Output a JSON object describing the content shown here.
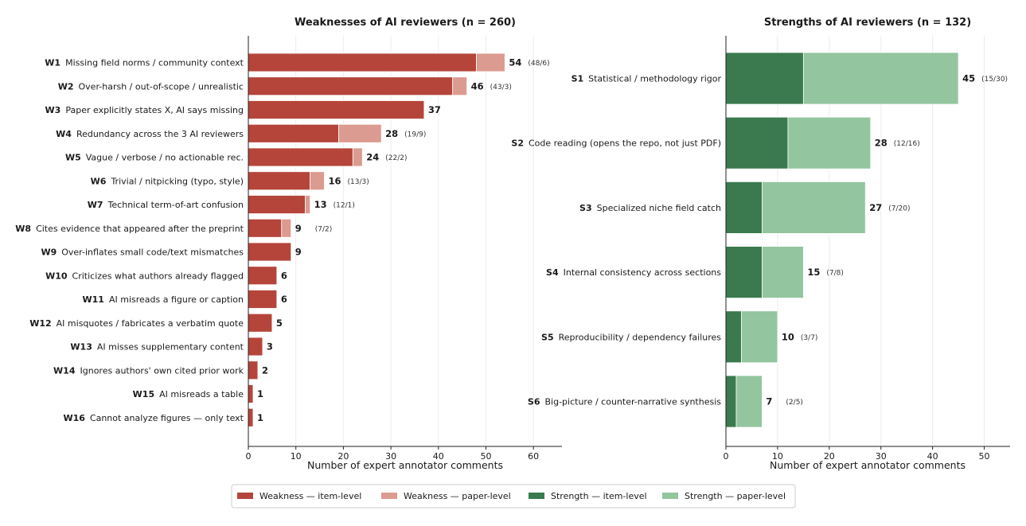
{
  "colors": {
    "weakness_item": "#b5453a",
    "weakness_paper": "#dc9b90",
    "strength_item": "#3a7a4e",
    "strength_paper": "#93c59f"
  },
  "legend": [
    {
      "label": "Weakness — item-level",
      "color_key": "weakness_item"
    },
    {
      "label": "Weakness — paper-level",
      "color_key": "weakness_paper"
    },
    {
      "label": "Strength — item-level",
      "color_key": "strength_item"
    },
    {
      "label": "Strength — paper-level",
      "color_key": "strength_paper"
    }
  ],
  "chart_data": [
    {
      "type": "bar",
      "orientation": "horizontal",
      "stacked": true,
      "title": "Weaknesses of AI reviewers (n = 260)",
      "xlabel": "Number of expert annotator comments",
      "xlim": [
        0,
        66
      ],
      "xticks": [
        0,
        10,
        20,
        30,
        40,
        50,
        60
      ],
      "grid": "vertical",
      "categories": [
        {
          "code": "W1",
          "text": "Missing field norms / community context"
        },
        {
          "code": "W2",
          "text": "Over-harsh / out-of-scope / unrealistic"
        },
        {
          "code": "W3",
          "text": "Paper explicitly states X, AI says missing"
        },
        {
          "code": "W4",
          "text": "Redundancy across the 3 AI reviewers"
        },
        {
          "code": "W5",
          "text": "Vague / verbose / no actionable rec."
        },
        {
          "code": "W6",
          "text": "Trivial / nitpicking (typo, style)"
        },
        {
          "code": "W7",
          "text": "Technical term-of-art confusion"
        },
        {
          "code": "W8",
          "text": "Cites evidence that appeared after the preprint"
        },
        {
          "code": "W9",
          "text": "Over-inflates small code/text mismatches"
        },
        {
          "code": "W10",
          "text": "Criticizes what authors already flagged"
        },
        {
          "code": "W11",
          "text": "AI misreads a figure or caption"
        },
        {
          "code": "W12",
          "text": "AI misquotes / fabricates a verbatim quote"
        },
        {
          "code": "W13",
          "text": "AI misses supplementary content"
        },
        {
          "code": "W14",
          "text": "Ignores authors' own cited prior work"
        },
        {
          "code": "W15",
          "text": "AI misreads a table"
        },
        {
          "code": "W16",
          "text": "Cannot analyze figures — only text"
        }
      ],
      "series": [
        {
          "name": "Weakness — item-level",
          "color_key": "weakness_item",
          "values": [
            48,
            43,
            37,
            19,
            22,
            13,
            12,
            7,
            9,
            6,
            6,
            5,
            3,
            2,
            1,
            1
          ]
        },
        {
          "name": "Weakness — paper-level",
          "color_key": "weakness_paper",
          "values": [
            6,
            3,
            0,
            9,
            2,
            3,
            1,
            2,
            0,
            0,
            0,
            0,
            0,
            0,
            0,
            0
          ]
        }
      ],
      "totals": [
        54,
        46,
        37,
        28,
        24,
        16,
        13,
        9,
        9,
        6,
        6,
        5,
        3,
        2,
        1,
        1
      ],
      "split_labels": [
        "(48/6)",
        "(43/3)",
        "",
        "(19/9)",
        "(22/2)",
        "(13/3)",
        "(12/1)",
        "(7/2)",
        "",
        "",
        "",
        "",
        "",
        "",
        "",
        ""
      ]
    },
    {
      "type": "bar",
      "orientation": "horizontal",
      "stacked": true,
      "title": "Strengths of AI reviewers (n = 132)",
      "xlabel": "Number of expert annotator comments",
      "xlim": [
        0,
        55
      ],
      "xticks": [
        0,
        10,
        20,
        30,
        40,
        50
      ],
      "grid": "vertical",
      "categories": [
        {
          "code": "S1",
          "text": "Statistical / methodology rigor"
        },
        {
          "code": "S2",
          "text": "Code reading (opens the repo, not just PDF)"
        },
        {
          "code": "S3",
          "text": "Specialized niche field catch"
        },
        {
          "code": "S4",
          "text": "Internal consistency across sections"
        },
        {
          "code": "S5",
          "text": "Reproducibility / dependency failures"
        },
        {
          "code": "S6",
          "text": "Big-picture / counter-narrative synthesis"
        }
      ],
      "series": [
        {
          "name": "Strength — item-level",
          "color_key": "strength_item",
          "values": [
            15,
            12,
            7,
            7,
            3,
            2
          ]
        },
        {
          "name": "Strength — paper-level",
          "color_key": "strength_paper",
          "values": [
            30,
            16,
            20,
            8,
            7,
            5
          ]
        }
      ],
      "totals": [
        45,
        28,
        27,
        15,
        10,
        7
      ],
      "split_labels": [
        "(15/30)",
        "(12/16)",
        "(7/20)",
        "(7/8)",
        "(3/7)",
        "(2/5)"
      ]
    }
  ]
}
